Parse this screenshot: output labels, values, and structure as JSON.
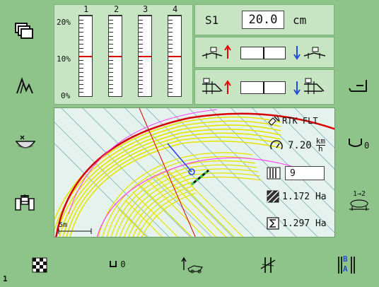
{
  "colors": {
    "background": "#8ec48a",
    "panel": "#c7e4c3",
    "map_bg": "#e8f4f0",
    "swath": "#e6e600",
    "boundary": "#d80000",
    "guide": "#ff40ff"
  },
  "gauge": {
    "section_labels": [
      "1",
      "2",
      "3",
      "4"
    ],
    "axis_labels": {
      "top": "20%",
      "mid": "10%",
      "bottom": "0%"
    },
    "levels_fraction": [
      0.5,
      0.5,
      0.5,
      0.5
    ]
  },
  "section": {
    "name": "S1",
    "value": "20.0",
    "unit": "cm"
  },
  "map": {
    "rtk_status": "RTK FLT",
    "speed": "7.20",
    "speed_unit_top": "km",
    "speed_unit_bottom": "h",
    "swath_count": "9",
    "area_current": "1.172 Ha",
    "area_total": "1.297 Ha",
    "scale_label": "5m"
  },
  "left_buttons": [
    "layers-icon",
    "ridge-profile-icon",
    "grain-tank-icon",
    "tractor-front-icon"
  ],
  "right_buttons": [
    "seat-backrest-icon",
    "headland-zero-icon",
    "section-sequence-icon"
  ],
  "right_button_labels": {
    "seq": "1→2"
  },
  "bottom_buttons": [
    "checkered-flag-icon",
    "zero-point-icon",
    "implement-lift-icon",
    "guidance-crossing-icon",
    "ab-line-icon"
  ],
  "bottom_labels": {
    "zero": "0",
    "ab_a": "A",
    "ab_b": "B"
  },
  "page_indicator": "1"
}
